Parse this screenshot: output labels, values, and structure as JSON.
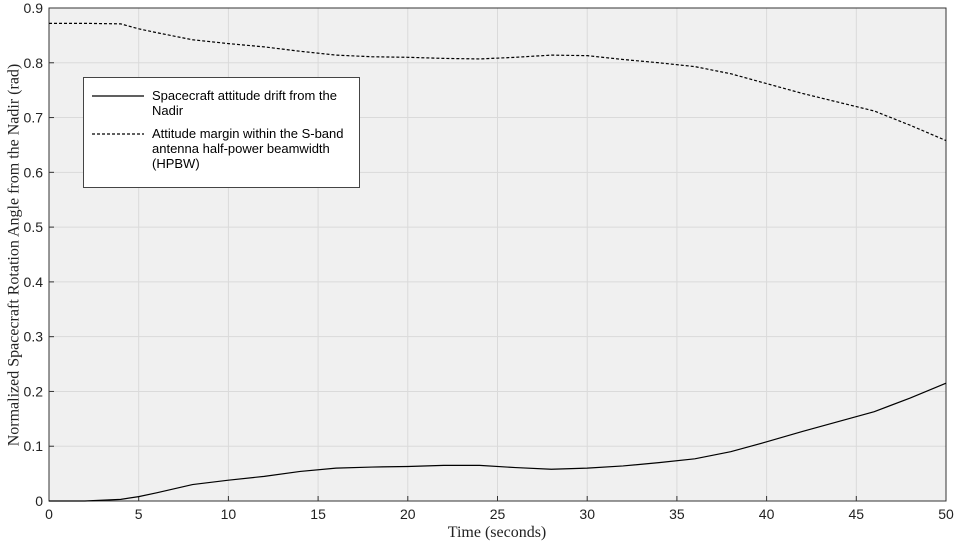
{
  "chart_data": {
    "type": "line",
    "xlabel": "Time (seconds)",
    "ylabel": "Normalized Spacecraft Rotation Angle from the Nadir (rad)",
    "x": [
      0,
      2,
      4,
      5,
      6,
      8,
      10,
      12,
      14,
      16,
      18,
      20,
      22,
      24,
      26,
      28,
      30,
      32,
      34,
      36,
      38,
      40,
      42,
      44,
      46,
      48,
      50
    ],
    "series": [
      {
        "name": "Spacecraft attitude drift from the Nadir",
        "color": "#000000",
        "style": "solid",
        "values": [
          0,
          0,
          0.003,
          0.008,
          0.015,
          0.03,
          0.038,
          0.045,
          0.054,
          0.06,
          0.062,
          0.063,
          0.065,
          0.065,
          0.061,
          0.058,
          0.06,
          0.064,
          0.07,
          0.077,
          0.09,
          0.108,
          0.127,
          0.145,
          0.163,
          0.188,
          0.215
        ]
      },
      {
        "name": "Attitude margin within the S-band antenna half-power beamwidth (HPBW)",
        "color": "#000000",
        "style": "dashed",
        "values": [
          0.872,
          0.872,
          0.871,
          0.862,
          0.855,
          0.842,
          0.835,
          0.829,
          0.821,
          0.814,
          0.811,
          0.81,
          0.808,
          0.807,
          0.81,
          0.814,
          0.813,
          0.806,
          0.8,
          0.793,
          0.78,
          0.762,
          0.744,
          0.728,
          0.712,
          0.686,
          0.658
        ]
      }
    ],
    "xlim": [
      0,
      50
    ],
    "xticks": [
      0,
      5,
      10,
      15,
      20,
      25,
      30,
      35,
      40,
      45,
      50
    ],
    "ylim": [
      0,
      0.9
    ],
    "yticks": [
      0,
      0.1,
      0.2,
      0.3,
      0.4,
      0.5,
      0.6,
      0.7,
      0.8,
      0.9
    ],
    "grid": true,
    "legend_position": "upper left"
  }
}
